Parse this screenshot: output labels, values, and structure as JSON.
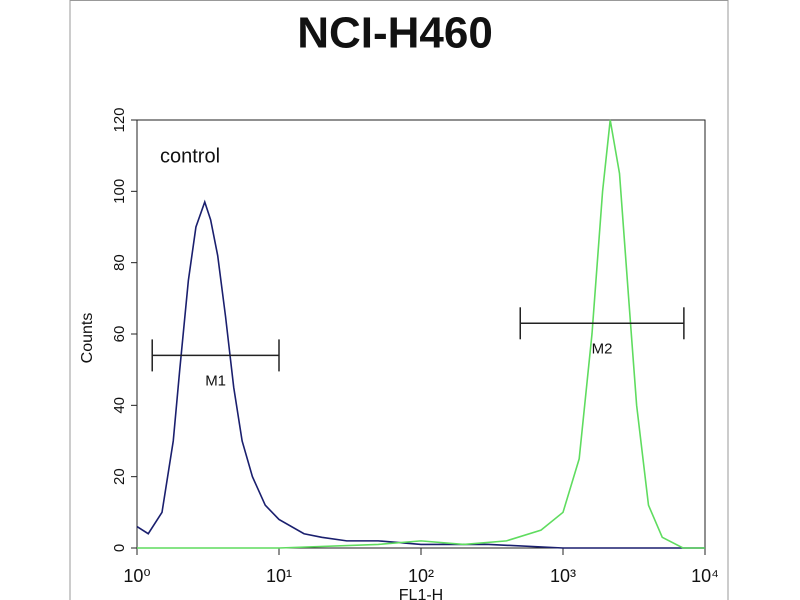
{
  "chart_data": {
    "type": "line",
    "title": "NCI-H460",
    "xlabel": "FL1-H",
    "ylabel": "Counts",
    "annotation": "control",
    "xscale": "log",
    "xlim": [
      1,
      10000
    ],
    "xticks": [
      {
        "value": 1,
        "label": "10⁰"
      },
      {
        "value": 10,
        "label": "10¹"
      },
      {
        "value": 100,
        "label": "10²"
      },
      {
        "value": 1000,
        "label": "10³"
      },
      {
        "value": 10000,
        "label": "10⁴"
      }
    ],
    "ylim": [
      0,
      120
    ],
    "yticks": [
      0,
      20,
      40,
      60,
      80,
      100,
      120
    ],
    "series": [
      {
        "name": "control",
        "color": "#1a1f6e",
        "x": [
          1,
          1.2,
          1.5,
          1.8,
          2,
          2.3,
          2.6,
          3,
          3.3,
          3.7,
          4.2,
          4.8,
          5.5,
          6.5,
          8,
          10,
          15,
          20,
          30,
          50,
          100,
          300,
          1000,
          10000
        ],
        "values": [
          6,
          4,
          10,
          30,
          50,
          75,
          90,
          97,
          92,
          82,
          65,
          45,
          30,
          20,
          12,
          8,
          4,
          3,
          2,
          2,
          1,
          1,
          0,
          0
        ]
      },
      {
        "color": "#5fdc5f",
        "x": [
          1,
          10,
          50,
          100,
          200,
          400,
          700,
          1000,
          1300,
          1600,
          1900,
          2150,
          2500,
          2900,
          3300,
          4000,
          5000,
          7000,
          10000
        ],
        "values": [
          0,
          0,
          1,
          2,
          1,
          2,
          5,
          10,
          25,
          60,
          100,
          120,
          105,
          70,
          40,
          12,
          3,
          0,
          0
        ]
      }
    ],
    "markers": [
      {
        "label": "M1",
        "x": [
          1.28,
          10
        ],
        "y": 54
      },
      {
        "label": "M2",
        "x": [
          500,
          7100
        ],
        "y": 63
      }
    ]
  }
}
